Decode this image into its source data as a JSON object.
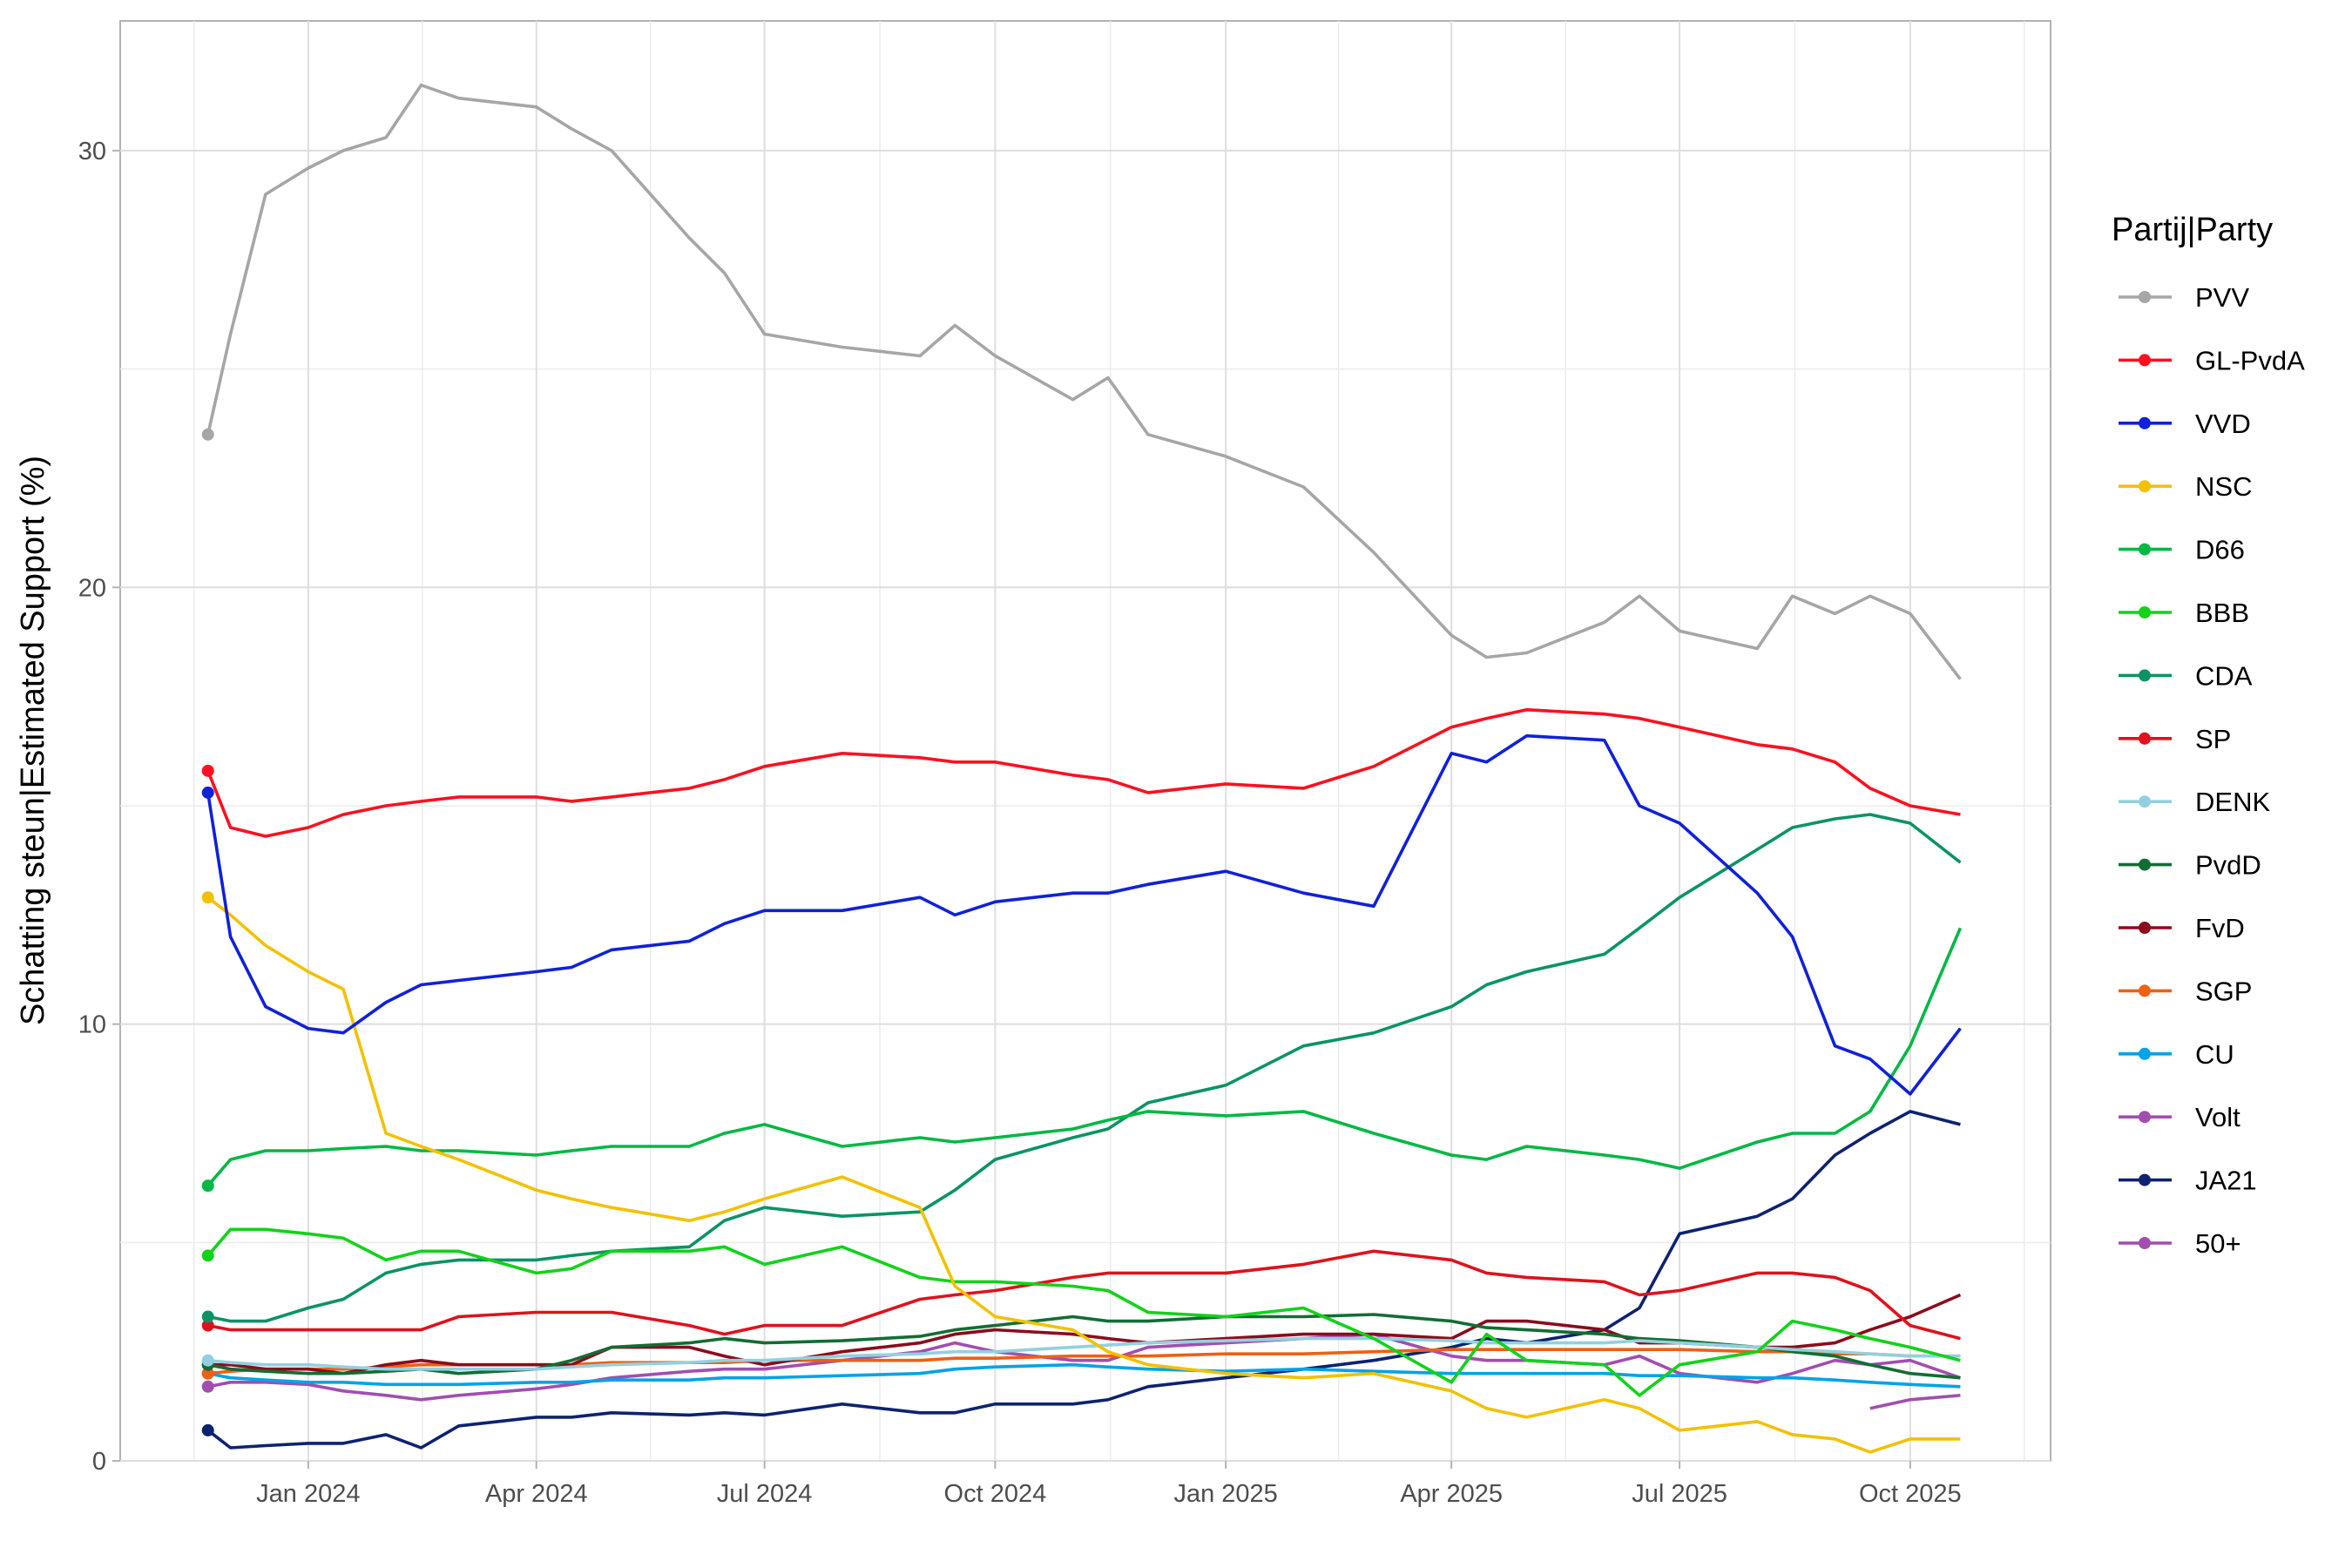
{
  "chart_data": {
    "type": "line",
    "title": "",
    "xlabel": "",
    "ylabel": "Schatting steun|Estimated Support (%)",
    "ylim": [
      0,
      32.97
    ],
    "xlim": [
      "2023-10-18",
      "2025-11-26"
    ],
    "grid": true,
    "legend_title": "Partij|Party",
    "legend_position": "right",
    "y_ticks": [
      0,
      10,
      20,
      30
    ],
    "x_ticks": [
      {
        "date": "2024-01-01",
        "label": "Jan 2024"
      },
      {
        "date": "2024-04-01",
        "label": "Apr 2024"
      },
      {
        "date": "2024-07-01",
        "label": "Jul 2024"
      },
      {
        "date": "2024-10-01",
        "label": "Oct 2024"
      },
      {
        "date": "2025-01-01",
        "label": "Jan 2025"
      },
      {
        "date": "2025-04-01",
        "label": "Apr 2025"
      },
      {
        "date": "2025-07-01",
        "label": "Jul 2025"
      },
      {
        "date": "2025-10-01",
        "label": "Oct 2025"
      }
    ],
    "x": [
      "2023-11-22",
      "2023-12-01",
      "2023-12-15",
      "2024-01-01",
      "2024-01-15",
      "2024-02-01",
      "2024-02-15",
      "2024-03-01",
      "2024-04-01",
      "2024-04-15",
      "2024-05-01",
      "2024-06-01",
      "2024-06-15",
      "2024-07-01",
      "2024-08-01",
      "2024-09-01",
      "2024-09-15",
      "2024-10-01",
      "2024-11-01",
      "2024-11-15",
      "2024-12-01",
      "2025-01-01",
      "2025-02-01",
      "2025-03-01",
      "2025-04-01",
      "2025-04-15",
      "2025-05-01",
      "2025-06-01",
      "2025-06-15",
      "2025-07-01",
      "2025-08-01",
      "2025-08-15",
      "2025-09-01",
      "2025-09-15",
      "2025-10-01",
      "2025-10-21"
    ],
    "series": [
      {
        "name": "PVV",
        "color": "#A6A6A6",
        "values": [
          23.5,
          25.8,
          29.0,
          29.6,
          30.0,
          30.3,
          31.5,
          31.2,
          31.0,
          30.5,
          30.0,
          28.0,
          27.2,
          25.8,
          25.5,
          25.3,
          26.0,
          25.3,
          24.3,
          24.8,
          23.5,
          23.0,
          22.3,
          20.8,
          18.9,
          18.4,
          18.5,
          19.2,
          19.8,
          19.0,
          18.6,
          19.8,
          19.4,
          19.8,
          19.4,
          17.9
        ]
      },
      {
        "name": "GL-PvdA",
        "color": "#FF0F1F",
        "values": [
          15.8,
          14.5,
          14.3,
          14.5,
          14.8,
          15.0,
          15.1,
          15.2,
          15.2,
          15.1,
          15.2,
          15.4,
          15.6,
          15.9,
          16.2,
          16.1,
          16.0,
          16.0,
          15.7,
          15.6,
          15.3,
          15.5,
          15.4,
          15.9,
          16.8,
          17.0,
          17.2,
          17.1,
          17.0,
          16.8,
          16.4,
          16.3,
          16.0,
          15.4,
          15.0,
          14.8
        ]
      },
      {
        "name": "VVD",
        "color": "#1021D8",
        "values": [
          15.3,
          12.0,
          10.4,
          9.9,
          9.8,
          10.5,
          10.9,
          11.0,
          11.2,
          11.3,
          11.7,
          11.9,
          12.3,
          12.6,
          12.6,
          12.9,
          12.5,
          12.8,
          13.0,
          13.0,
          13.2,
          13.5,
          13.0,
          12.7,
          16.2,
          16.0,
          16.6,
          16.5,
          15.0,
          14.6,
          13.0,
          12.0,
          9.5,
          9.2,
          8.4,
          9.9
        ]
      },
      {
        "name": "NSC",
        "color": "#F2C100",
        "values": [
          12.9,
          12.5,
          11.8,
          11.2,
          10.8,
          7.5,
          7.2,
          6.9,
          6.2,
          6.0,
          5.8,
          5.5,
          5.7,
          6.0,
          6.5,
          5.8,
          4.0,
          3.3,
          3.0,
          2.5,
          2.2,
          2.0,
          1.9,
          2.0,
          1.6,
          1.2,
          1.0,
          1.4,
          1.2,
          0.7,
          0.9,
          0.6,
          0.5,
          0.2,
          0.5,
          0.5
        ]
      },
      {
        "name": "D66",
        "color": "#00B843",
        "values": [
          6.3,
          6.9,
          7.1,
          7.1,
          7.15,
          7.2,
          7.1,
          7.1,
          7.0,
          7.1,
          7.2,
          7.2,
          7.5,
          7.7,
          7.2,
          7.4,
          7.3,
          7.4,
          7.6,
          7.8,
          8.0,
          7.9,
          8.0,
          7.5,
          7.0,
          6.9,
          7.2,
          7.0,
          6.9,
          6.7,
          7.3,
          7.5,
          7.5,
          8.0,
          9.5,
          12.2
        ]
      },
      {
        "name": "BBB",
        "color": "#12D21A",
        "values": [
          4.7,
          5.3,
          5.3,
          5.2,
          5.1,
          4.6,
          4.8,
          4.8,
          4.3,
          4.4,
          4.8,
          4.8,
          4.9,
          4.5,
          4.9,
          4.2,
          4.1,
          4.1,
          4.0,
          3.9,
          3.4,
          3.3,
          3.5,
          2.8,
          1.8,
          2.9,
          2.3,
          2.2,
          1.5,
          2.2,
          2.5,
          3.2,
          3.0,
          2.8,
          2.6,
          2.3
        ]
      },
      {
        "name": "CDA",
        "color": "#0B9365",
        "values": [
          3.3,
          3.2,
          3.2,
          3.5,
          3.7,
          4.3,
          4.5,
          4.6,
          4.6,
          4.7,
          4.8,
          4.9,
          5.5,
          5.8,
          5.6,
          5.7,
          6.2,
          6.9,
          7.4,
          7.6,
          8.2,
          8.6,
          9.5,
          9.8,
          10.4,
          10.9,
          11.2,
          11.6,
          12.2,
          12.9,
          14.0,
          14.5,
          14.7,
          14.8,
          14.6,
          13.7
        ]
      },
      {
        "name": "SP",
        "color": "#E0111B",
        "values": [
          3.1,
          3.0,
          3.0,
          3.0,
          3.0,
          3.0,
          3.0,
          3.3,
          3.4,
          3.4,
          3.4,
          3.1,
          2.9,
          3.1,
          3.1,
          3.7,
          3.8,
          3.9,
          4.2,
          4.3,
          4.3,
          4.3,
          4.5,
          4.8,
          4.6,
          4.3,
          4.2,
          4.1,
          3.8,
          3.9,
          4.3,
          4.3,
          4.2,
          3.9,
          3.1,
          2.8
        ]
      },
      {
        "name": "DENK",
        "color": "#92D0E0",
        "values": [
          2.3,
          2.25,
          2.2,
          2.2,
          2.15,
          2.1,
          2.1,
          2.1,
          2.1,
          2.15,
          2.2,
          2.25,
          2.3,
          2.3,
          2.4,
          2.45,
          2.5,
          2.5,
          2.6,
          2.65,
          2.7,
          2.75,
          2.8,
          2.8,
          2.75,
          2.7,
          2.7,
          2.7,
          2.75,
          2.7,
          2.6,
          2.55,
          2.5,
          2.45,
          2.4,
          2.4
        ]
      },
      {
        "name": "PvdD",
        "color": "#126D34",
        "values": [
          2.2,
          2.1,
          2.05,
          2.0,
          2.0,
          2.05,
          2.1,
          2.0,
          2.1,
          2.3,
          2.6,
          2.7,
          2.8,
          2.7,
          2.75,
          2.85,
          3.0,
          3.1,
          3.3,
          3.2,
          3.2,
          3.3,
          3.3,
          3.35,
          3.2,
          3.05,
          3.0,
          2.9,
          2.8,
          2.75,
          2.6,
          2.5,
          2.4,
          2.2,
          2.0,
          1.9
        ]
      },
      {
        "name": "FvD",
        "color": "#8B0C1C",
        "values": [
          2.2,
          2.2,
          2.1,
          2.1,
          2.0,
          2.2,
          2.3,
          2.2,
          2.2,
          2.2,
          2.6,
          2.6,
          2.4,
          2.2,
          2.5,
          2.7,
          2.9,
          3.0,
          2.9,
          2.8,
          2.7,
          2.8,
          2.9,
          2.9,
          2.8,
          3.2,
          3.2,
          3.0,
          2.7,
          2.7,
          2.6,
          2.6,
          2.7,
          3.0,
          3.3,
          3.8
        ]
      },
      {
        "name": "SGP",
        "color": "#EE6012",
        "values": [
          2.0,
          2.05,
          2.1,
          2.1,
          2.1,
          2.15,
          2.2,
          2.2,
          2.2,
          2.2,
          2.25,
          2.25,
          2.25,
          2.3,
          2.3,
          2.3,
          2.35,
          2.35,
          2.4,
          2.4,
          2.4,
          2.45,
          2.45,
          2.5,
          2.55,
          2.55,
          2.55,
          2.55,
          2.55,
          2.55,
          2.5,
          2.5,
          2.45,
          2.45,
          2.4,
          2.4
        ]
      },
      {
        "name": "CU",
        "color": "#00A3E8",
        "values": [
          2.0,
          1.9,
          1.85,
          1.8,
          1.8,
          1.75,
          1.75,
          1.75,
          1.8,
          1.8,
          1.85,
          1.85,
          1.9,
          1.9,
          1.95,
          2.0,
          2.1,
          2.15,
          2.2,
          2.15,
          2.1,
          2.05,
          2.1,
          2.05,
          2.0,
          2.0,
          2.0,
          2.0,
          1.95,
          1.95,
          1.9,
          1.9,
          1.85,
          1.8,
          1.75,
          1.7
        ]
      },
      {
        "name": "Volt",
        "color": "#A24DB0",
        "values": [
          1.7,
          1.8,
          1.8,
          1.75,
          1.6,
          1.5,
          1.4,
          1.5,
          1.65,
          1.75,
          1.9,
          2.05,
          2.1,
          2.1,
          2.3,
          2.5,
          2.7,
          2.5,
          2.3,
          2.3,
          2.6,
          2.7,
          2.8,
          2.9,
          2.4,
          2.3,
          2.3,
          2.2,
          2.4,
          2.0,
          1.8,
          2.0,
          2.3,
          2.2,
          2.3,
          1.9
        ]
      },
      {
        "name": "JA21",
        "color": "#0D2270",
        "values": [
          0.7,
          0.3,
          0.35,
          0.4,
          0.4,
          0.6,
          0.3,
          0.8,
          1.0,
          1.0,
          1.1,
          1.05,
          1.1,
          1.05,
          1.3,
          1.1,
          1.1,
          1.3,
          1.3,
          1.4,
          1.7,
          1.9,
          2.1,
          2.3,
          2.6,
          2.8,
          2.7,
          3.0,
          3.5,
          5.2,
          5.6,
          6.0,
          7.0,
          7.5,
          8.0,
          7.7
        ]
      },
      {
        "name": "50+",
        "color": "#A24DB0",
        "values": [
          null,
          null,
          null,
          null,
          null,
          null,
          null,
          null,
          null,
          null,
          null,
          null,
          null,
          null,
          null,
          null,
          null,
          null,
          null,
          null,
          null,
          null,
          null,
          null,
          null,
          null,
          null,
          null,
          null,
          null,
          null,
          null,
          null,
          1.2,
          1.4,
          1.5
        ]
      }
    ]
  }
}
